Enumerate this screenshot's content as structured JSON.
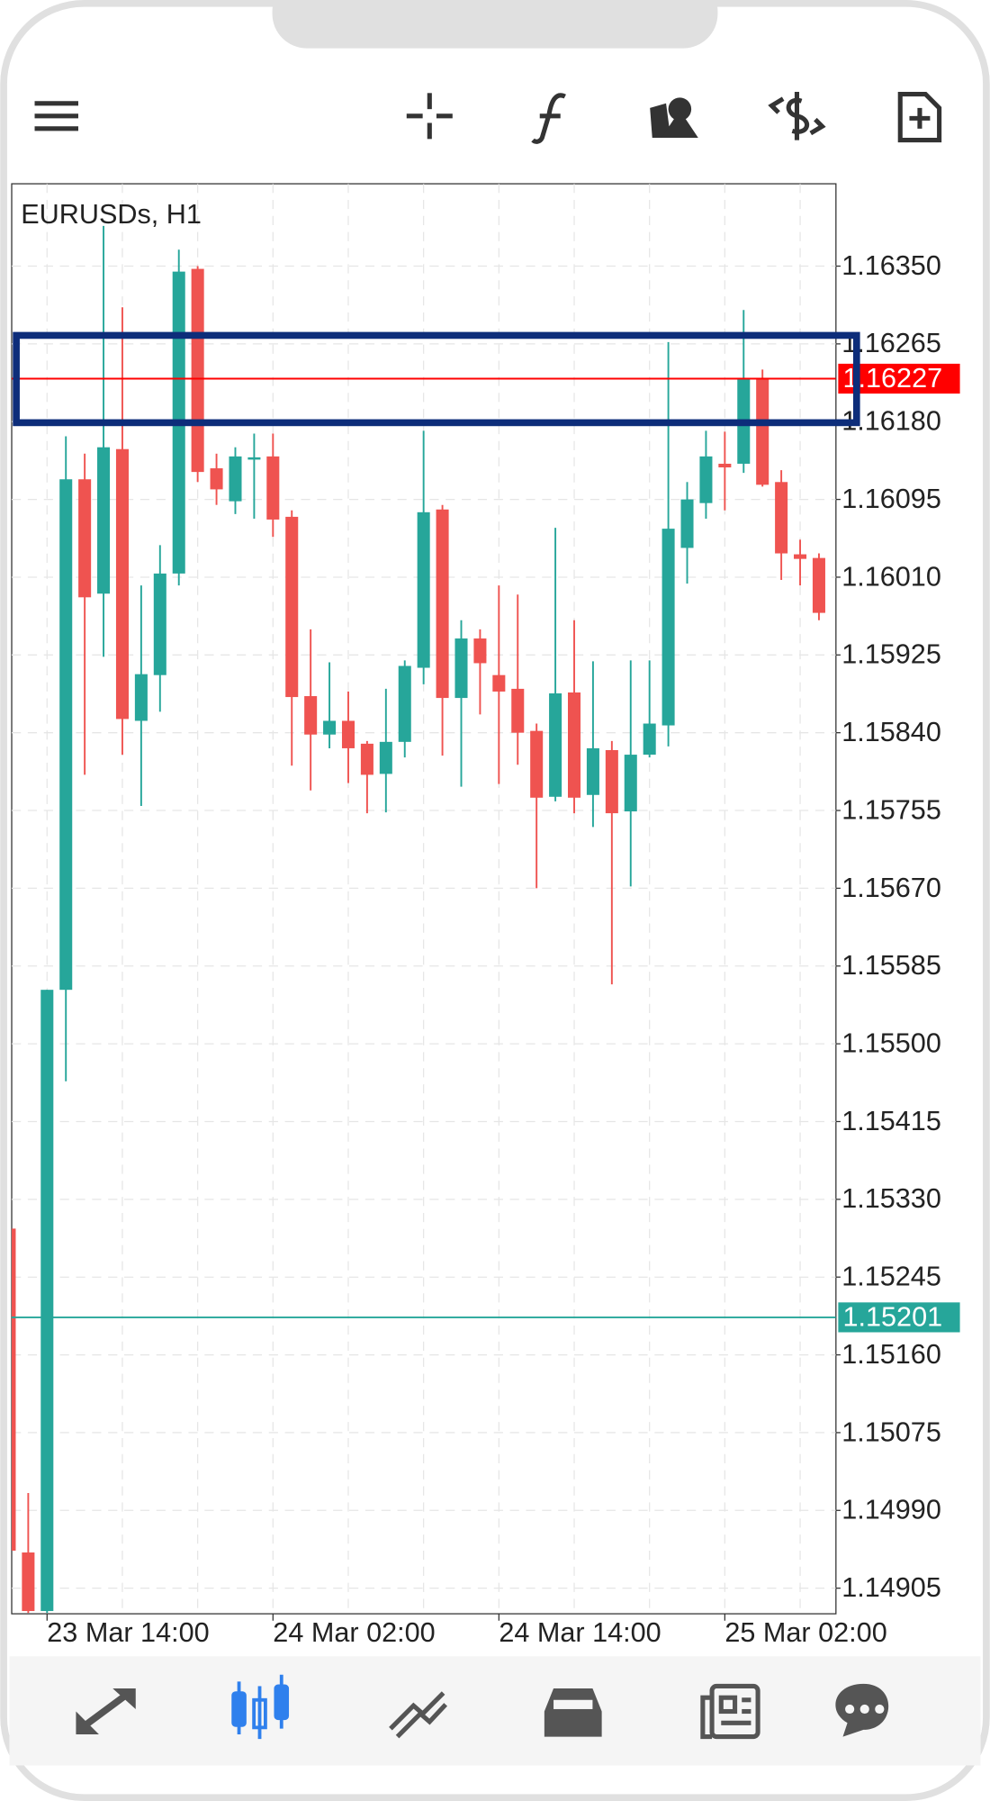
{
  "chart_data": {
    "type": "candlestick",
    "title": "EURUSDs, H1",
    "categories": [
      null,
      null,
      "23 Mar 14:00",
      null,
      null,
      null,
      null,
      null,
      null,
      null,
      null,
      null,
      null,
      null,
      "24 Mar 02:00",
      null,
      null,
      null,
      null,
      null,
      null,
      null,
      null,
      null,
      null,
      null,
      "24 Mar 14:00",
      null,
      null,
      null,
      null,
      null,
      null,
      null,
      null,
      null,
      null,
      null,
      "25 Mar 02:00",
      null,
      null,
      null,
      null,
      null
    ],
    "open": [
      1.15298,
      1.14944,
      1.1488,
      1.15559,
      1.16117,
      1.15992,
      1.1615,
      1.15853,
      1.15903,
      1.16014,
      1.16347,
      1.16129,
      1.16093,
      1.16139,
      1.16142,
      1.16076,
      1.1588,
      1.15838,
      1.15853,
      1.15828,
      1.15795,
      1.1583,
      1.15911,
      1.16084,
      1.15878,
      1.15943,
      1.15903,
      1.15888,
      1.15842,
      1.1577,
      1.15884,
      1.15772,
      1.15821,
      1.15754,
      1.15816,
      1.15848,
      1.16042,
      1.16091,
      1.16134,
      1.16134,
      1.16227,
      1.16114,
      1.16035,
      1.16031
    ],
    "high": [
      1.15298,
      1.15009,
      1.15559,
      1.16164,
      1.16145,
      1.16394,
      1.16305,
      1.16001,
      1.16045,
      1.16368,
      1.1635,
      1.16145,
      1.16152,
      1.16167,
      1.16167,
      1.16083,
      1.15953,
      1.15917,
      1.15885,
      1.15831,
      1.15888,
      1.15919,
      1.1617,
      1.16089,
      1.15963,
      1.15953,
      1.16001,
      1.15991,
      1.1585,
      1.16064,
      1.15963,
      1.15918,
      1.15831,
      1.15919,
      1.15919,
      1.16267,
      1.16114,
      1.1617,
      1.16169,
      1.16302,
      1.16237,
      1.16127,
      1.16051,
      1.16036
    ],
    "low": [
      1.14946,
      1.14878,
      1.14878,
      1.15459,
      1.15794,
      1.15923,
      1.15816,
      1.1576,
      1.15863,
      1.16001,
      1.16114,
      1.16089,
      1.16079,
      1.16074,
      1.16054,
      1.15804,
      1.15777,
      1.15823,
      1.15785,
      1.15752,
      1.15753,
      1.15813,
      1.15893,
      1.15815,
      1.15781,
      1.1586,
      1.15784,
      1.15805,
      1.1567,
      1.15765,
      1.15752,
      1.15737,
      1.15565,
      1.15672,
      1.15813,
      1.15825,
      1.16003,
      1.16074,
      1.16083,
      1.16124,
      1.16109,
      1.16007,
      1.16001,
      1.15963
    ],
    "close": [
      1.14946,
      1.1488,
      1.15559,
      1.16117,
      1.15988,
      1.16152,
      1.15855,
      1.15904,
      1.16014,
      1.16344,
      1.16125,
      1.16106,
      1.16142,
      1.16141,
      1.16073,
      1.15879,
      1.15838,
      1.15853,
      1.15823,
      1.15794,
      1.1583,
      1.15913,
      1.16081,
      1.15878,
      1.15943,
      1.15916,
      1.15885,
      1.1584,
      1.15769,
      1.15883,
      1.15769,
      1.15823,
      1.15752,
      1.15816,
      1.1585,
      1.16063,
      1.16095,
      1.16142,
      1.1613,
      1.16227,
      1.16111,
      1.16036,
      1.1603,
      1.15971
    ],
    "up_color": "#26a69a",
    "down_color": "#ef5350",
    "ylim": [
      1.14877,
      1.1644
    ],
    "yticks": [
      {
        "value": 1.1635,
        "label": "1.16350"
      },
      {
        "value": 1.16265,
        "label": "1.16265"
      },
      {
        "value": 1.1618,
        "label": "1.16180"
      },
      {
        "value": 1.16095,
        "label": "1.16095"
      },
      {
        "value": 1.1601,
        "label": "1.16010"
      },
      {
        "value": 1.15925,
        "label": "1.15925"
      },
      {
        "value": 1.1584,
        "label": "1.15840"
      },
      {
        "value": 1.15755,
        "label": "1.15755"
      },
      {
        "value": 1.1567,
        "label": "1.15670"
      },
      {
        "value": 1.15585,
        "label": "1.15585"
      },
      {
        "value": 1.155,
        "label": "1.15500"
      },
      {
        "value": 1.15415,
        "label": "1.15415"
      },
      {
        "value": 1.1533,
        "label": "1.15330"
      },
      {
        "value": 1.15245,
        "label": "1.15245"
      },
      {
        "value": 1.1516,
        "label": "1.15160"
      },
      {
        "value": 1.15075,
        "label": "1.15075"
      },
      {
        "value": 1.1499,
        "label": "1.14990"
      },
      {
        "value": 1.14905,
        "label": "1.14905"
      }
    ],
    "price_lines": [
      {
        "value": 1.16227,
        "color": "#ff0000"
      },
      {
        "value": 1.15201,
        "color": "#26a69a"
      }
    ],
    "grid": true
  }
}
